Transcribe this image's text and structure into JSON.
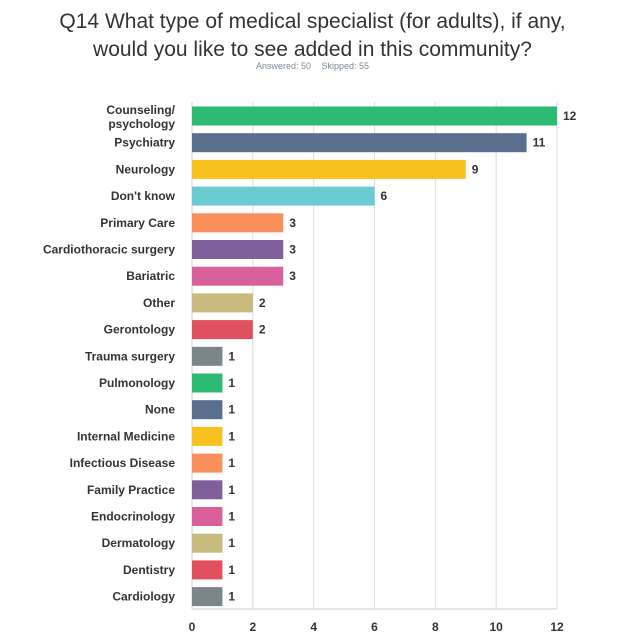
{
  "title": {
    "line1": "Q14 What type of medical specialist (for adults), if any,",
    "line2": "would you like to see added in this community?"
  },
  "meta": {
    "answered": "Answered: 50",
    "skipped": "Skipped: 55"
  },
  "chart_data": {
    "type": "bar",
    "orientation": "horizontal",
    "categories": [
      "Counseling/ psychology",
      "Psychiatry",
      "Neurology",
      "Don't know",
      "Primary Care",
      "Cardiothoracic surgery",
      "Bariatric",
      "Other",
      "Gerontology",
      "Trauma surgery",
      "Pulmonology",
      "None",
      "Internal Medicine",
      "Infectious Disease",
      "Family Practice",
      "Endocrinology",
      "Dermatology",
      "Dentistry",
      "Cardiology"
    ],
    "values": [
      12,
      11,
      9,
      6,
      3,
      3,
      3,
      2,
      2,
      1,
      1,
      1,
      1,
      1,
      1,
      1,
      1,
      1,
      1
    ],
    "colors": [
      "#2dbb73",
      "#5a6e8e",
      "#f8c11f",
      "#6bcbd3",
      "#f98f5a",
      "#80609a",
      "#d9609b",
      "#c9bb7e",
      "#e0505e",
      "#7b868b",
      "#2dbb73",
      "#5a6e8e",
      "#f8c11f",
      "#f98f5a",
      "#80609a",
      "#d9609b",
      "#c9bb7e",
      "#e0505e",
      "#7b868b"
    ],
    "xlim": [
      0,
      12
    ],
    "xticks": [
      "0",
      "2",
      "4",
      "6",
      "8",
      "10",
      "12"
    ],
    "grid": true,
    "legend": "none"
  }
}
